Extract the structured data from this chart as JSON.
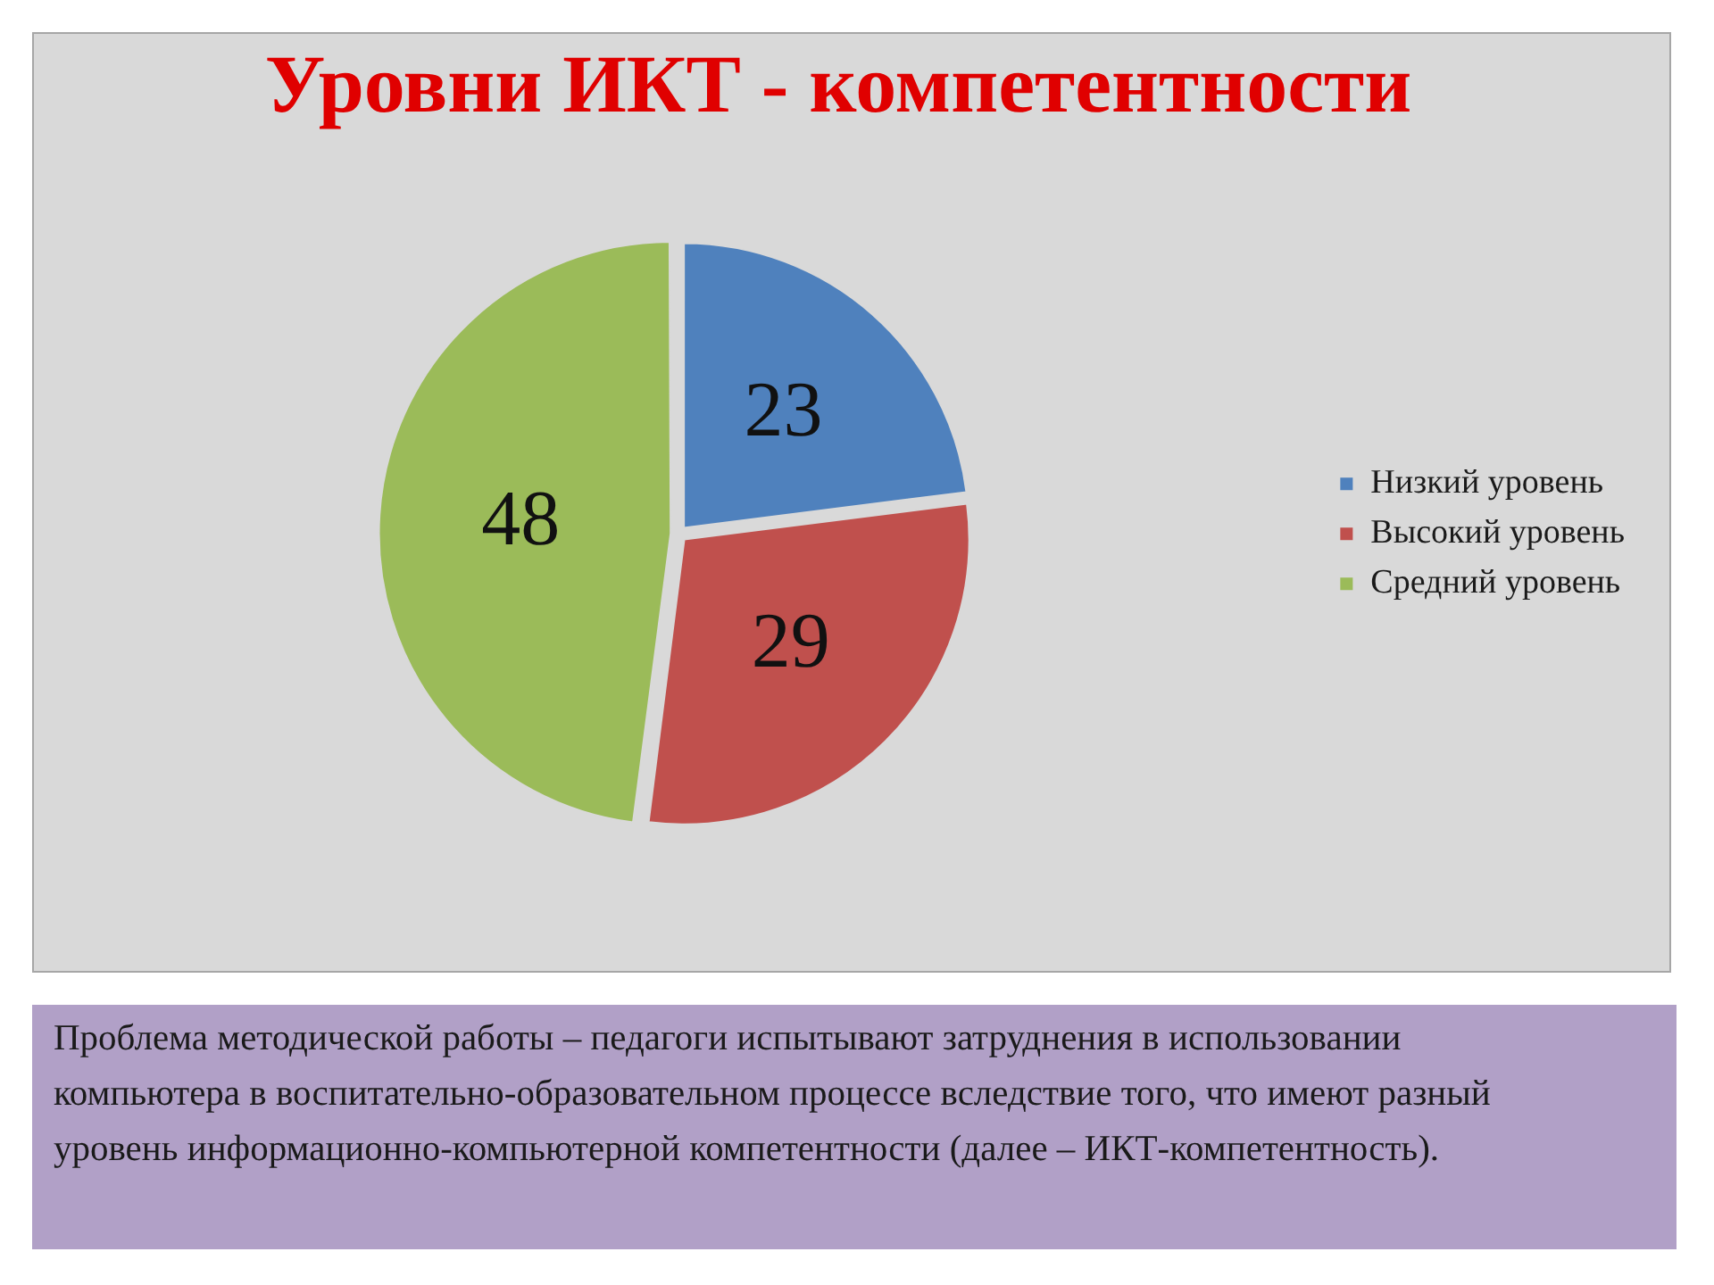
{
  "chart_data": {
    "type": "pie",
    "title": "Уровни ИКТ - компетентности",
    "categories": [
      "Низкий уровень",
      "Высокий уровень",
      "Средний уровень"
    ],
    "values": [
      23,
      29,
      48
    ],
    "colors": [
      "#4f81bd",
      "#c0504d",
      "#9bbb59"
    ],
    "data_labels": true,
    "legend": "right",
    "annotations": [
      "Проблема методической работы – педагоги испытывают затруднения в использовании компьютера в воспитательно-образовательном процессе вследствие того, что имеют разный уровень информационно-компьютерной компетентности (далее – ИКТ-компетентность)."
    ]
  }
}
